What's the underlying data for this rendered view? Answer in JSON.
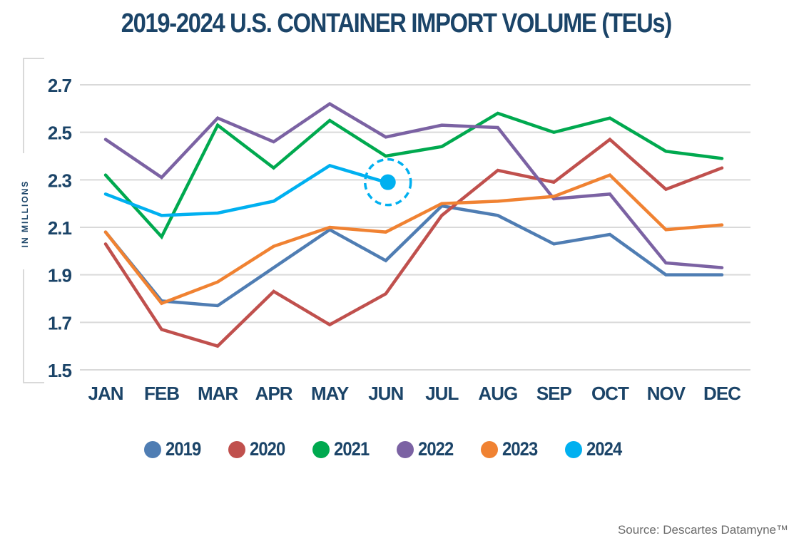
{
  "chart_data": {
    "type": "line",
    "title": "2019-2024 U.S. CONTAINER IMPORT VOLUME (TEUs)",
    "xlabel": "",
    "ylabel": "IN MILLIONS",
    "categories": [
      "JAN",
      "FEB",
      "MAR",
      "APR",
      "MAY",
      "JUN",
      "JUL",
      "AUG",
      "SEP",
      "OCT",
      "NOV",
      "DEC"
    ],
    "ylim": [
      1.5,
      2.7
    ],
    "yticks": [
      "2.7",
      "2.5",
      "2.3",
      "2.1",
      "1.9",
      "1.7",
      "1.5"
    ],
    "ytick_values": [
      2.7,
      2.5,
      2.3,
      2.1,
      1.9,
      1.7,
      1.5
    ],
    "grid": true,
    "legend_position": "bottom",
    "series": [
      {
        "name": "2019",
        "color": "#4f7db3",
        "values": [
          2.08,
          1.79,
          1.77,
          1.93,
          2.09,
          1.96,
          2.19,
          2.15,
          2.03,
          2.07,
          1.9,
          1.9
        ]
      },
      {
        "name": "2020",
        "color": "#c0504d",
        "values": [
          2.03,
          1.67,
          1.6,
          1.83,
          1.69,
          1.82,
          2.15,
          2.34,
          2.29,
          2.47,
          2.26,
          2.35
        ]
      },
      {
        "name": "2021",
        "color": "#00a94f",
        "values": [
          2.32,
          2.06,
          2.53,
          2.35,
          2.55,
          2.4,
          2.44,
          2.58,
          2.5,
          2.56,
          2.42,
          2.39
        ]
      },
      {
        "name": "2022",
        "color": "#7b62a3",
        "values": [
          2.47,
          2.31,
          2.56,
          2.46,
          2.62,
          2.48,
          2.53,
          2.52,
          2.22,
          2.24,
          1.95,
          1.93
        ]
      },
      {
        "name": "2023",
        "color": "#f08232",
        "values": [
          2.08,
          1.78,
          1.87,
          2.02,
          2.1,
          2.08,
          2.2,
          2.21,
          2.23,
          2.32,
          2.09,
          2.11
        ]
      },
      {
        "name": "2024",
        "color": "#00b0f0",
        "values": [
          2.24,
          2.15,
          2.16,
          2.21,
          2.36,
          2.29
        ]
      }
    ],
    "annotations": [
      {
        "type": "highlight-marker",
        "series": "2024",
        "category": "JUN",
        "value": 2.29
      }
    ]
  },
  "source": "Source: Descartes Datamyne™",
  "colors": {
    "title": "#1b4468",
    "grid": "#d9d9d9",
    "axis_text": "#1b4468"
  }
}
